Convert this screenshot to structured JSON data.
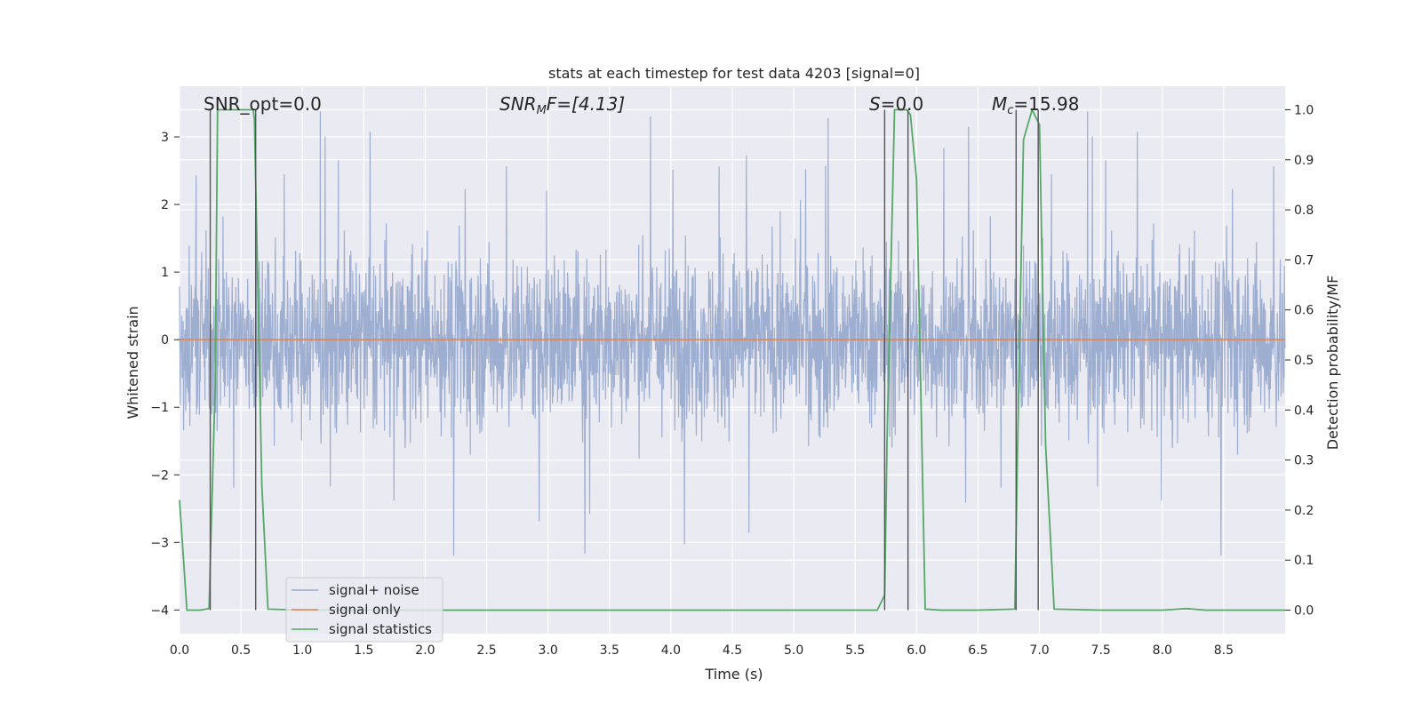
{
  "chart_data": {
    "type": "line",
    "title": "stats at each timestep for test data 4203 [signal=0]",
    "xlabel": "Time (s)",
    "ylabel": "Whitened strain",
    "y2label": "Detection probability/MF",
    "xlim": [
      0.0,
      9.0
    ],
    "ylim": [
      -4.35,
      3.75
    ],
    "y2lim": [
      -0.047,
      1.047
    ],
    "xticks": [
      "0.0",
      "0.5",
      "1.0",
      "1.5",
      "2.0",
      "2.5",
      "3.0",
      "3.5",
      "4.0",
      "4.5",
      "5.0",
      "5.5",
      "6.0",
      "6.5",
      "7.0",
      "7.5",
      "8.0",
      "8.5"
    ],
    "yticks": [
      "3",
      "2",
      "1",
      "0",
      "−1",
      "−2",
      "−3",
      "−4"
    ],
    "y2ticks": [
      "1.0",
      "0.9",
      "0.8",
      "0.7",
      "0.6",
      "0.5",
      "0.4",
      "0.3",
      "0.2",
      "0.1",
      "0.0"
    ],
    "grid": true,
    "legend_position": "lower-left",
    "annotations": {
      "snr_opt_text": "SNR_opt=0.0",
      "snr_mf_main": "SNR",
      "snr_mf_sub": "M",
      "snr_mf_rest": "F=[4.13]",
      "s_main": "S",
      "s_rest": "=0.0",
      "mc_main": "M",
      "mc_sub": "c",
      "mc_rest": "=15.98"
    },
    "series": [
      {
        "name": "signal+ noise",
        "color": "#9aabcf",
        "description_points_envelope": {
          "x": [
            0.0,
            9.0
          ],
          "typical_range": [
            -1.5,
            1.5
          ],
          "peak_max": 3.4,
          "peak_min": -4.0
        }
      },
      {
        "name": "signal only",
        "color": "#dd8452",
        "x": [
          0.0,
          9.0
        ],
        "y": [
          0.0,
          0.0
        ]
      },
      {
        "name": "signal statistics",
        "color": "#55a868",
        "axis": "right",
        "x": [
          0.0,
          0.06,
          0.17,
          0.24,
          0.29,
          0.31,
          0.6,
          0.61,
          0.67,
          0.72,
          1.0,
          2.0,
          3.0,
          4.0,
          5.0,
          5.2,
          5.68,
          5.74,
          5.76,
          5.82,
          5.92,
          5.95,
          6.0,
          6.07,
          6.2,
          6.5,
          6.8,
          6.82,
          6.87,
          6.94,
          7.0,
          7.05,
          7.12,
          7.5,
          8.0,
          8.2,
          8.35,
          9.0
        ],
        "y": [
          0.22,
          0.0,
          0.0,
          0.003,
          0.45,
          1.0,
          1.0,
          0.98,
          0.25,
          0.002,
          0.0,
          0.0,
          0.0,
          0.0,
          0.0,
          0.0,
          0.0,
          0.03,
          0.35,
          1.0,
          1.0,
          0.99,
          0.86,
          0.002,
          0.0,
          0.0,
          0.002,
          0.3,
          0.94,
          1.0,
          0.97,
          0.33,
          0.002,
          0.0,
          0.0,
          0.003,
          0.0,
          0.0
        ]
      }
    ],
    "vertical_markers_x": [
      0.25,
      0.62,
      5.74,
      5.93,
      6.81,
      6.99
    ],
    "legend": [
      "signal+ noise",
      "signal only",
      "signal statistics"
    ]
  }
}
